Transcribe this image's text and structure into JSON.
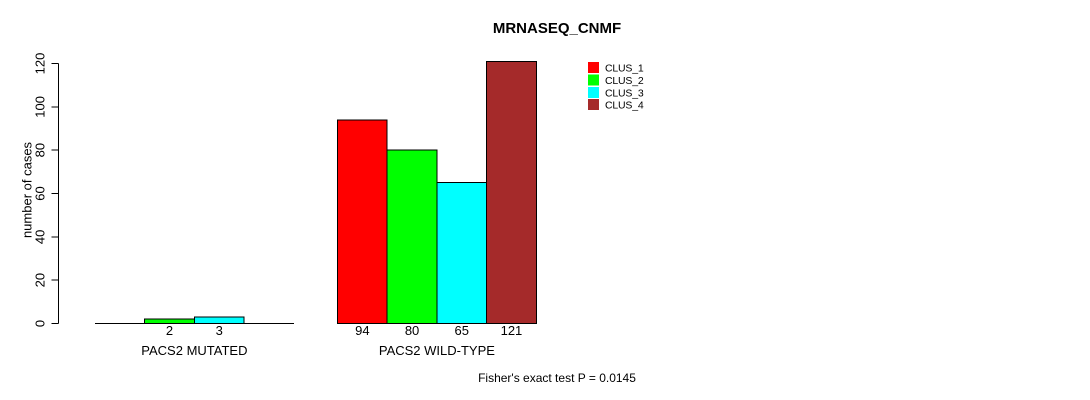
{
  "figure": {
    "background": "#FFFFFF"
  },
  "chart_data": {
    "type": "bar",
    "title": "MRNASEQ_CNMF",
    "ylabel": "number of cases",
    "xlabel": "",
    "footnote": "Fisher's exact test P = 0.0145",
    "ylim": [
      0,
      120
    ],
    "yticks": [
      0,
      20,
      40,
      60,
      80,
      100,
      120
    ],
    "grid": false,
    "legend_position": "top-right-inside",
    "categories": [
      "PACS2 MUTATED",
      "PACS2 WILD-TYPE"
    ],
    "series": [
      {
        "name": "CLUS_1",
        "color": "#FF0000",
        "values": [
          0,
          94
        ]
      },
      {
        "name": "CLUS_2",
        "color": "#00FF00",
        "values": [
          2,
          80
        ]
      },
      {
        "name": "CLUS_3",
        "color": "#00FFFF",
        "values": [
          3,
          65
        ]
      },
      {
        "name": "CLUS_4",
        "color": "#A52A2A",
        "values": [
          0,
          121
        ]
      }
    ],
    "visible_bar_value_labels": [
      "2",
      "3",
      "94",
      "80",
      "65",
      "121"
    ],
    "hide_zero_value_labels": true,
    "bar_border_color": "#000000",
    "axis_color": "#000000"
  }
}
